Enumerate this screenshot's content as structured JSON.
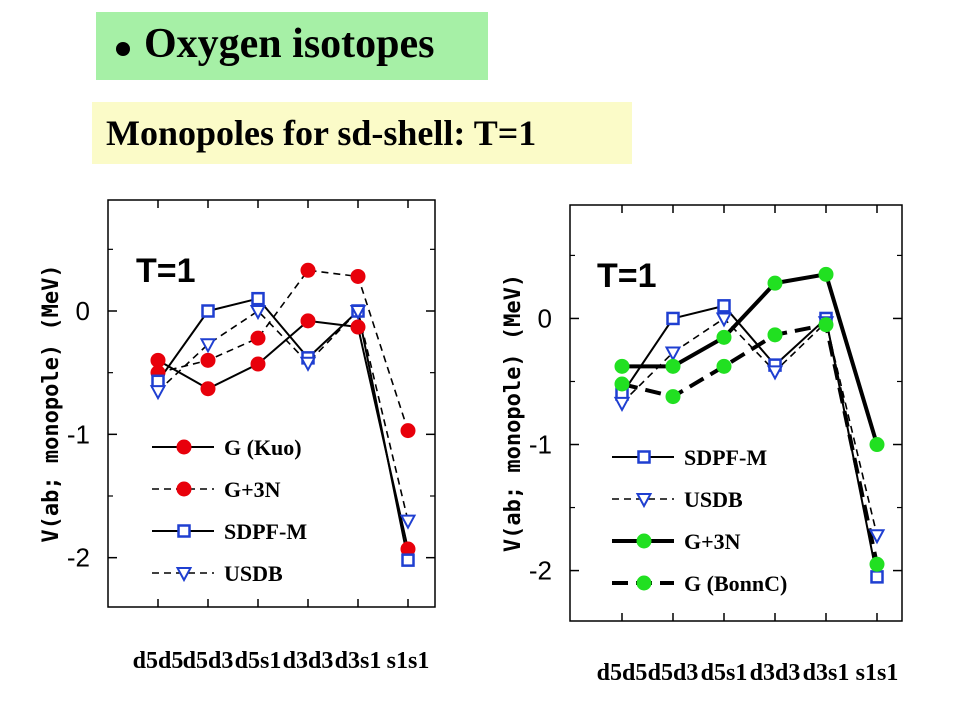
{
  "header": {
    "title": "Oxygen isotopes",
    "subtitle": "Monopoles for sd-shell:  T=1"
  },
  "chart_data": [
    {
      "type": "line",
      "ylabel": "V(ab; monopole) (MeV)",
      "annotation": "T=1",
      "categories": [
        "d5d5",
        "d5d3",
        "d5s1",
        "d3d3",
        "d3s1",
        "s1s1"
      ],
      "yticks": [
        "0",
        "-1",
        "-2"
      ],
      "ylim": [
        -2.4,
        0.9
      ],
      "series": [
        {
          "name": "G (Kuo)",
          "values": [
            -0.4,
            -0.63,
            -0.43,
            -0.08,
            -0.13,
            -1.93
          ],
          "color": "#e8000b",
          "marker": "circle",
          "line": "solid"
        },
        {
          "name": "G+3N",
          "values": [
            -0.5,
            -0.4,
            -0.22,
            0.33,
            0.28,
            -0.97
          ],
          "color": "#e8000b",
          "marker": "circle",
          "line": "dashed"
        },
        {
          "name": "SDPF-M",
          "values": [
            -0.57,
            0.0,
            0.1,
            -0.38,
            0.0,
            -2.02
          ],
          "color": "#1f3fd1",
          "marker": "square",
          "line": "solid"
        },
        {
          "name": "USDB",
          "values": [
            -0.65,
            -0.27,
            0.0,
            -0.42,
            0.0,
            -1.7
          ],
          "color": "#1f3fd1",
          "marker": "triangle",
          "line": "dashed"
        }
      ]
    },
    {
      "type": "line",
      "ylabel": "V(ab; monopole) (MeV)",
      "annotation": "T=1",
      "categories": [
        "d5d5",
        "d5d3",
        "d5s1",
        "d3d3",
        "d3s1",
        "s1s1"
      ],
      "yticks": [
        "0",
        "-1",
        "-2"
      ],
      "ylim": [
        -2.4,
        0.9
      ],
      "series": [
        {
          "name": "SDPF-M",
          "values": [
            -0.6,
            0.0,
            0.1,
            -0.37,
            0.0,
            -2.05
          ],
          "color": "#1f3fd1",
          "marker": "square",
          "line": "solid"
        },
        {
          "name": "USDB",
          "values": [
            -0.67,
            -0.27,
            0.0,
            -0.42,
            -0.03,
            -1.72
          ],
          "color": "#1f3fd1",
          "marker": "triangle",
          "line": "dashed"
        },
        {
          "name": "G+3N",
          "values": [
            -0.38,
            -0.38,
            -0.15,
            0.28,
            0.35,
            -1.0
          ],
          "color": "#21e021",
          "marker": "circle",
          "line": "thick"
        },
        {
          "name": "G (BonnC)",
          "values": [
            -0.52,
            -0.62,
            -0.38,
            -0.13,
            -0.05,
            -1.95
          ],
          "color": "#21e021",
          "marker": "circle",
          "line": "thickdash"
        }
      ]
    }
  ]
}
